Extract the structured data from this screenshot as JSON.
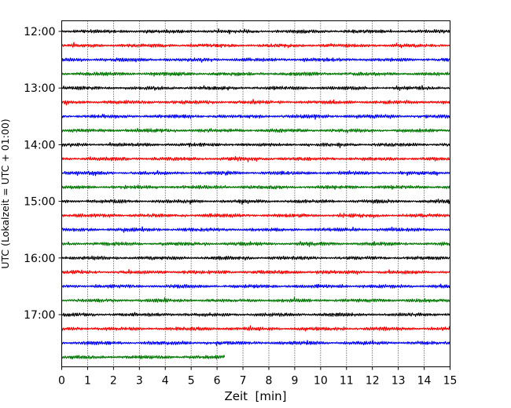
{
  "chart_data": {
    "type": "line",
    "title": "",
    "xlabel": "Zeit  [min]",
    "ylabel": "UTC (Lokalzeit = UTC + 01:00)",
    "xlim": [
      0,
      15
    ],
    "x_ticks": [
      "0",
      "1",
      "2",
      "3",
      "4",
      "5",
      "6",
      "7",
      "8",
      "9",
      "10",
      "11",
      "12",
      "13",
      "14",
      "15"
    ],
    "y_ticks": [
      "12:00",
      "13:00",
      "14:00",
      "15:00",
      "16:00",
      "17:00"
    ],
    "grid": "vertical dotted",
    "trace_colors": [
      "#000000",
      "#ff0000",
      "#0000ff",
      "#007700"
    ],
    "series": [
      {
        "start": "12:00",
        "color": "#000000",
        "duration_min": 15
      },
      {
        "start": "12:15",
        "color": "#ff0000",
        "duration_min": 15
      },
      {
        "start": "12:30",
        "color": "#0000ff",
        "duration_min": 15
      },
      {
        "start": "12:45",
        "color": "#007700",
        "duration_min": 15
      },
      {
        "start": "13:00",
        "color": "#000000",
        "duration_min": 15
      },
      {
        "start": "13:15",
        "color": "#ff0000",
        "duration_min": 15
      },
      {
        "start": "13:30",
        "color": "#0000ff",
        "duration_min": 15
      },
      {
        "start": "13:45",
        "color": "#007700",
        "duration_min": 15
      },
      {
        "start": "14:00",
        "color": "#000000",
        "duration_min": 15
      },
      {
        "start": "14:15",
        "color": "#ff0000",
        "duration_min": 15
      },
      {
        "start": "14:30",
        "color": "#0000ff",
        "duration_min": 15
      },
      {
        "start": "14:45",
        "color": "#007700",
        "duration_min": 15
      },
      {
        "start": "15:00",
        "color": "#000000",
        "duration_min": 15
      },
      {
        "start": "15:15",
        "color": "#ff0000",
        "duration_min": 15
      },
      {
        "start": "15:30",
        "color": "#0000ff",
        "duration_min": 15
      },
      {
        "start": "15:45",
        "color": "#007700",
        "duration_min": 15
      },
      {
        "start": "16:00",
        "color": "#000000",
        "duration_min": 15
      },
      {
        "start": "16:15",
        "color": "#ff0000",
        "duration_min": 15
      },
      {
        "start": "16:30",
        "color": "#0000ff",
        "duration_min": 15
      },
      {
        "start": "16:45",
        "color": "#007700",
        "duration_min": 15
      },
      {
        "start": "17:00",
        "color": "#000000",
        "duration_min": 15
      },
      {
        "start": "17:15",
        "color": "#ff0000",
        "duration_min": 15
      },
      {
        "start": "17:30",
        "color": "#0000ff",
        "duration_min": 15
      },
      {
        "start": "17:45",
        "color": "#007700",
        "duration_min": 6.3
      }
    ]
  }
}
